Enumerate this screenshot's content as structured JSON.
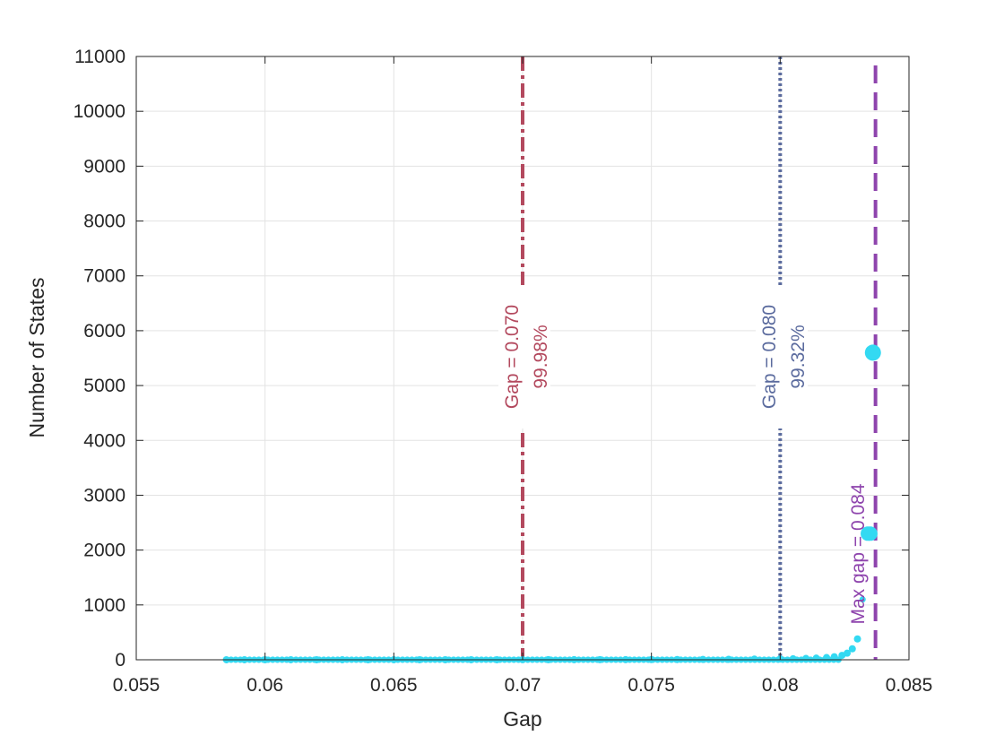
{
  "chart_data": {
    "type": "scatter",
    "title": "",
    "xlabel": "Gap",
    "ylabel": "Number of States",
    "xlim": [
      0.055,
      0.085
    ],
    "ylim": [
      0,
      11000
    ],
    "xticks": [
      0.055,
      0.06,
      0.065,
      0.07,
      0.075,
      0.08,
      0.085
    ],
    "xtick_labels": [
      "0.055",
      "0.06",
      "0.065",
      "0.07",
      "0.075",
      "0.08",
      "0.085"
    ],
    "yticks": [
      0,
      1000,
      2000,
      3000,
      4000,
      5000,
      6000,
      7000,
      8000,
      9000,
      10000,
      11000
    ],
    "ytick_labels": [
      "0",
      "1000",
      "2000",
      "3000",
      "4000",
      "5000",
      "6000",
      "7000",
      "8000",
      "9000",
      "10000",
      "11000"
    ],
    "grid": true,
    "legend": "none",
    "marker_color": "#33d9f2",
    "series": [
      {
        "x": [
          0.0585,
          0.0592,
          0.06,
          0.061,
          0.062,
          0.063,
          0.064,
          0.065,
          0.066,
          0.067,
          0.068,
          0.069,
          0.07,
          0.071,
          0.072,
          0.073,
          0.074,
          0.075,
          0.076,
          0.077,
          0.078,
          0.079,
          0.08,
          0.0805,
          0.081,
          0.0814,
          0.0818,
          0.0821,
          0.0824,
          0.0826,
          0.0828,
          0.083,
          0.0832,
          0.0834,
          0.0835,
          0.0836
        ],
        "y": [
          1,
          1,
          1,
          1,
          1,
          1,
          1,
          1,
          1,
          1,
          1,
          1,
          2,
          2,
          2,
          3,
          3,
          4,
          5,
          7,
          9,
          12,
          15,
          18,
          24,
          30,
          40,
          55,
          80,
          120,
          200,
          380,
          1100,
          2300,
          2300,
          5600
        ]
      }
    ],
    "annotations": [
      {
        "x": 0.07,
        "label": "Gap = 0.070",
        "sublabel": "99.98%",
        "style": "dash-dot",
        "color": "#b3495e"
      },
      {
        "x": 0.08,
        "label": "Gap = 0.080",
        "sublabel": "99.32%",
        "style": "dotted",
        "color": "#5b6b9e"
      },
      {
        "x": 0.0837,
        "label": "Max gap = 0.084",
        "sublabel": "",
        "style": "dashed",
        "color": "#8e44ad"
      }
    ]
  }
}
